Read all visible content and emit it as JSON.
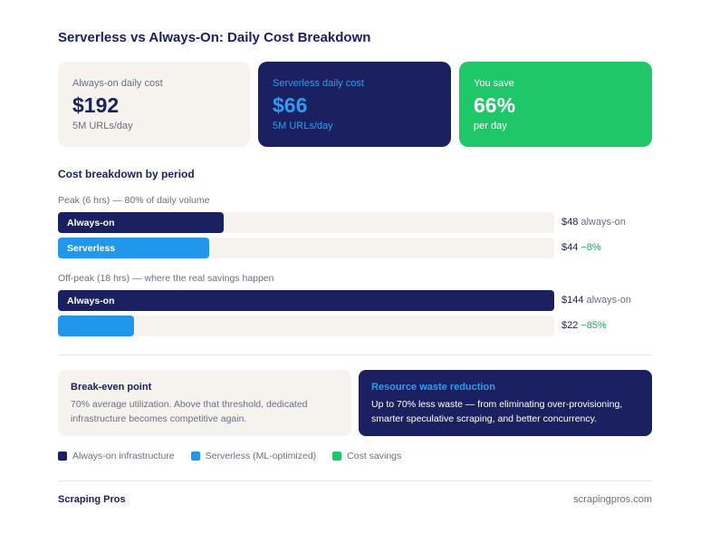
{
  "title": "Serverless vs Always-On: Daily Cost Breakdown",
  "cards": {
    "always_on": {
      "label": "Always-on daily cost",
      "value": "$192",
      "sub": "5M URLs/day"
    },
    "serverless": {
      "label": "Serverless daily cost",
      "value": "$66",
      "sub": "5M URLs/day"
    },
    "savings": {
      "label": "You save",
      "value": "66%",
      "sub": "per day"
    }
  },
  "section_title": "Cost breakdown by period",
  "chart_data": {
    "type": "bar",
    "orientation": "horizontal",
    "title": "Cost breakdown by period",
    "scale_max": 144,
    "groups": [
      {
        "label": "Peak (6 hrs) — 80% of daily volume",
        "bars": [
          {
            "series": "Always-on",
            "value": 48,
            "value_label": "$48",
            "note": "always-on",
            "inner_label": "Always-on"
          },
          {
            "series": "Serverless",
            "value": 44,
            "value_label": "$44",
            "note": "−8%",
            "inner_label": "Serverless"
          }
        ]
      },
      {
        "label": "Off-peak (18 hrs) — where the real savings happen",
        "bars": [
          {
            "series": "Always-on",
            "value": 144,
            "value_label": "$144",
            "note": "always-on",
            "inner_label": "Always-on"
          },
          {
            "series": "Serverless",
            "value": 22,
            "value_label": "$22",
            "note": "−85%",
            "inner_label": ""
          }
        ]
      }
    ],
    "colors": {
      "always_on": "#1b2160",
      "serverless": "#2197eb",
      "savings": "#1ec768",
      "track": "#f6f2ee"
    }
  },
  "info": {
    "breakeven": {
      "title": "Break-even point",
      "text": "70% average utilization. Above that threshold, dedicated infrastructure becomes competitive again."
    },
    "waste": {
      "title": "Resource waste reduction",
      "text": "Up to 70% less waste — from eliminating over-provisioning, smarter speculative scraping, and better concurrency."
    }
  },
  "legend": [
    {
      "label": "Always-on infrastructure",
      "color": "#1b2160"
    },
    {
      "label": "Serverless (ML-optimized)",
      "color": "#2197eb"
    },
    {
      "label": "Cost savings",
      "color": "#1ec768"
    }
  ],
  "footer": {
    "brand": "Scraping Pros",
    "url": "scrapingpros.com"
  }
}
